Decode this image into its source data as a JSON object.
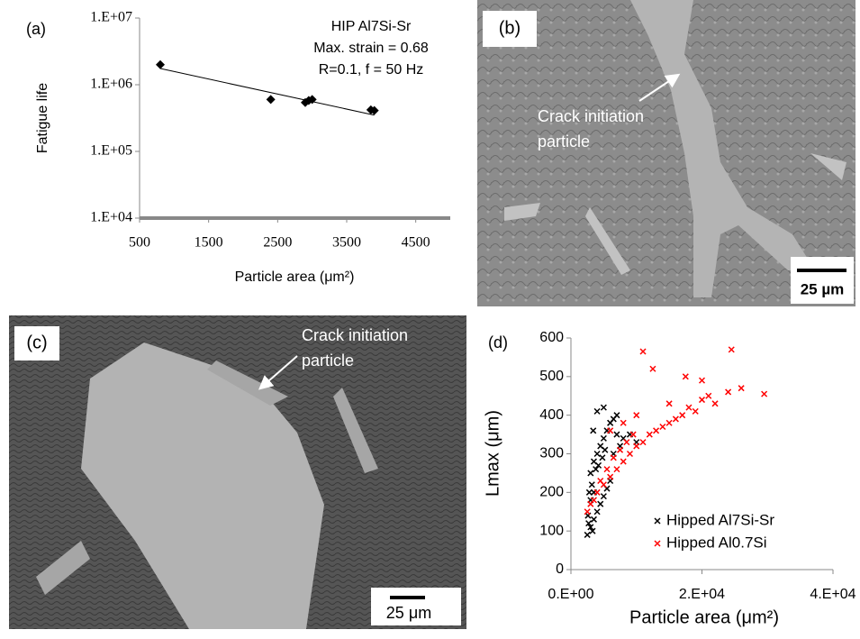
{
  "chart_data": [
    {
      "type": "scatter",
      "panel_label": "(a)",
      "ylabel": "Fatigue life",
      "xlabel": "Particle area (μm²)",
      "annotations": [
        "HIP Al7Si-Sr",
        "Max. strain = 0.68",
        "R=0.1, f = 50 Hz"
      ],
      "log_y": true,
      "xlim": [
        500,
        5000
      ],
      "ylim": [
        10000,
        10000000
      ],
      "xticks": [
        500,
        1500,
        2500,
        3500,
        4500
      ],
      "yticks": [
        {
          "value": 10000,
          "label": "1.E+04"
        },
        {
          "value": 100000,
          "label": "1.E+05"
        },
        {
          "value": 1000000,
          "label": "1.E+06"
        },
        {
          "value": 10000000,
          "label": "1.E+07"
        }
      ],
      "series": [
        {
          "color": "#000000",
          "x": [
            800,
            2400,
            2900,
            2950,
            3000,
            3850,
            3900
          ],
          "values": [
            2000000,
            600000,
            540000,
            580000,
            600000,
            420000,
            410000
          ]
        }
      ],
      "trendline": {
        "color": "#000000",
        "x": [
          800,
          3900
        ],
        "values": [
          1750000,
          350000
        ]
      }
    },
    {
      "type": "scatter",
      "panel_label": "(d)",
      "ylabel": "Lmax (μm)",
      "xlabel": "Particle area (μm²)",
      "log_y": false,
      "xlim": [
        0,
        40000
      ],
      "ylim": [
        0,
        600
      ],
      "legend": "lower right",
      "xticks": [
        {
          "value": 0,
          "label": "0.E+00"
        },
        {
          "value": 20000,
          "label": "2.E+04"
        },
        {
          "value": 40000,
          "label": "4.E+04"
        }
      ],
      "yticks": [
        0,
        100,
        200,
        300,
        400,
        500,
        600
      ],
      "series": [
        {
          "name": "Hipped Al7Si-Sr",
          "color": "#000000",
          "x": [
            2500,
            3000,
            3500,
            4000,
            4500,
            5000,
            5500,
            6000,
            3000,
            3500,
            4000,
            4500,
            5000,
            5500,
            6000,
            6500,
            7000,
            2800,
            3200,
            3800,
            4200,
            4800,
            5200,
            6500,
            7500,
            8000,
            2600,
            3000,
            3400,
            9000,
            10000,
            4000,
            5000,
            6000,
            7000,
            3500,
            2700,
            3300
          ],
          "values": [
            90,
            110,
            130,
            150,
            170,
            190,
            210,
            230,
            250,
            280,
            300,
            320,
            340,
            360,
            380,
            390,
            400,
            200,
            220,
            260,
            270,
            290,
            310,
            300,
            320,
            340,
            140,
            180,
            360,
            350,
            330,
            410,
            420,
            380,
            350,
            200,
            120,
            100
          ]
        },
        {
          "name": "Hipped Al0.7Si",
          "color": "#ff0000",
          "x": [
            2500,
            3000,
            4000,
            5000,
            6000,
            7000,
            8000,
            9000,
            10000,
            11000,
            12000,
            13000,
            14000,
            15000,
            16000,
            17000,
            18000,
            19000,
            20000,
            21000,
            22000,
            24000,
            26000,
            29500,
            11000,
            12500,
            15000,
            17500,
            20000,
            3500,
            4500,
            5500,
            6500,
            7500,
            8500,
            9500,
            6000,
            8000,
            10000,
            24500
          ],
          "values": [
            150,
            170,
            200,
            220,
            240,
            260,
            280,
            300,
            320,
            330,
            350,
            360,
            370,
            380,
            390,
            400,
            420,
            410,
            440,
            450,
            430,
            460,
            470,
            455,
            565,
            520,
            430,
            500,
            490,
            180,
            230,
            260,
            290,
            310,
            330,
            350,
            360,
            380,
            400,
            570
          ]
        }
      ]
    }
  ],
  "images": [
    {
      "panel_label": "(b)",
      "annotation": [
        "Crack initiation",
        "particle"
      ],
      "scale_bar": "25 µm"
    },
    {
      "panel_label": "(c)",
      "annotation": [
        "Crack initiation",
        "particle"
      ],
      "scale_bar": "25 μm"
    }
  ]
}
